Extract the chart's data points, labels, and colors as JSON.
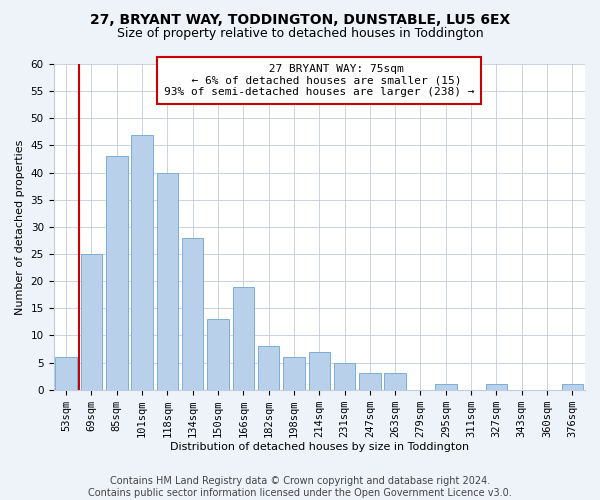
{
  "title1": "27, BRYANT WAY, TODDINGTON, DUNSTABLE, LU5 6EX",
  "title2": "Size of property relative to detached houses in Toddington",
  "xlabel": "Distribution of detached houses by size in Toddington",
  "ylabel": "Number of detached properties",
  "categories": [
    "53sqm",
    "69sqm",
    "85sqm",
    "101sqm",
    "118sqm",
    "134sqm",
    "150sqm",
    "166sqm",
    "182sqm",
    "198sqm",
    "214sqm",
    "231sqm",
    "247sqm",
    "263sqm",
    "279sqm",
    "295sqm",
    "311sqm",
    "327sqm",
    "343sqm",
    "360sqm",
    "376sqm"
  ],
  "values": [
    6,
    25,
    43,
    47,
    40,
    28,
    13,
    19,
    8,
    6,
    7,
    5,
    3,
    3,
    0,
    1,
    0,
    1,
    0,
    0,
    1
  ],
  "bar_color": "#b8d0ea",
  "bar_edgecolor": "#7aafd4",
  "ylim_max": 60,
  "yticks": [
    0,
    5,
    10,
    15,
    20,
    25,
    30,
    35,
    40,
    45,
    50,
    55,
    60
  ],
  "vline_color": "#cc0000",
  "annotation_title": "27 BRYANT WAY: 75sqm",
  "annotation_line1": "← 6% of detached houses are smaller (15)",
  "annotation_line2": "93% of semi-detached houses are larger (238) →",
  "bg_color": "#eef2f9",
  "plot_bg_color": "#ffffff",
  "footer1": "Contains HM Land Registry data © Crown copyright and database right 2024.",
  "footer2": "Contains public sector information licensed under the Open Government Licence v3.0.",
  "title1_fontsize": 10,
  "title2_fontsize": 9,
  "annot_fontsize": 8,
  "ylabel_fontsize": 8,
  "xlabel_fontsize": 8,
  "tick_fontsize": 7.5,
  "footer_fontsize": 7
}
